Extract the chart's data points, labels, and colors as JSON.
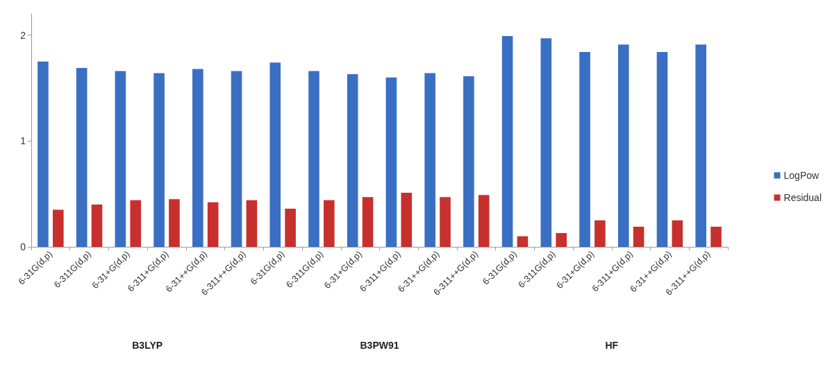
{
  "chart_data": {
    "type": "bar",
    "categories": [
      "6-31G(d,p)",
      "6-311G(d,p)",
      "6-31+G(d,p)",
      "6-311+G(d,p)",
      "6-31++G(d,p)",
      "6-311++G(d,p)",
      "6-31G(d,p)",
      "6-311G(d,p)",
      "6-31+G(d,p)",
      "6-311+G(d,p)",
      "6-31++G(d,p)",
      "6-311++G(d,p)",
      "6-31G(d,p)",
      "6-311G(d,p)",
      "6-31+G(d,p)",
      "6-311+G(d,p)",
      "6-31++G(d,p)",
      "6-311++G(d,p)"
    ],
    "series": [
      {
        "name": "LogPow",
        "color": "#3a6fc4",
        "values": [
          1.75,
          1.69,
          1.66,
          1.64,
          1.68,
          1.66,
          1.74,
          1.66,
          1.63,
          1.6,
          1.64,
          1.61,
          1.99,
          1.97,
          1.84,
          1.91,
          1.84,
          1.91
        ]
      },
      {
        "name": "Residual",
        "color": "#c8302e",
        "values": [
          0.35,
          0.4,
          0.44,
          0.45,
          0.42,
          0.44,
          0.36,
          0.44,
          0.47,
          0.51,
          0.47,
          0.49,
          0.1,
          0.13,
          0.25,
          0.19,
          0.25,
          0.19
        ]
      }
    ],
    "annotations": [
      "B3LYP",
      "B3PW91",
      "HF"
    ],
    "ylim": [
      0,
      2.2
    ],
    "yticks": [
      0,
      1,
      2
    ],
    "grid": false,
    "legend": "right"
  }
}
